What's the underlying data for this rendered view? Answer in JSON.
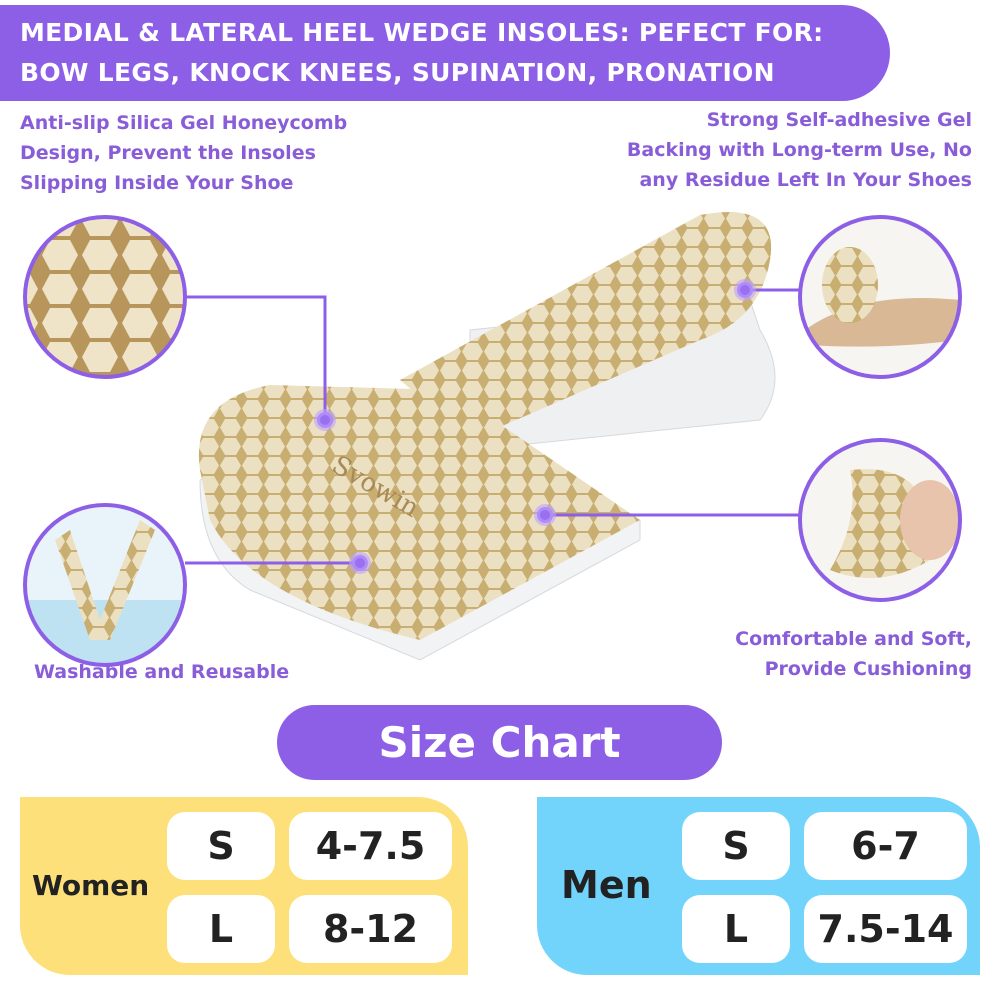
{
  "banner": {
    "line1": "MEDIAL & LATERAL HEEL WEDGE INSOLES: PEFECT FOR:",
    "line2": "BOW LEGS, KNOCK KNEES, SUPINATION, PRONATION"
  },
  "features": {
    "top_left": [
      "Anti-slip Silica Gel Honeycomb",
      "Design, Prevent the Insoles",
      "Slipping Inside Your Shoe"
    ],
    "top_right": [
      "Strong Self-adhesive Gel",
      "Backing with Long-term Use, No",
      "any Residue Left In Your Shoes"
    ],
    "bottom_left": [
      "Washable and Reusable"
    ],
    "bottom_right": [
      "Comfortable and Soft,",
      "Provide Cushioning"
    ]
  },
  "product": {
    "brand": "Svowin"
  },
  "size_chart": {
    "title": "Size Chart",
    "women": {
      "label": "Women",
      "rows": [
        {
          "size": "S",
          "range": "4-7.5"
        },
        {
          "size": "L",
          "range": "8-12"
        }
      ]
    },
    "men": {
      "label": "Men",
      "rows": [
        {
          "size": "S",
          "range": "6-7"
        },
        {
          "size": "L",
          "range": "7.5-14"
        }
      ]
    }
  },
  "colors": {
    "accent": "#8d5fe6",
    "women": "#fde07a",
    "men": "#72d4fb",
    "insole": "#e6d5ad"
  }
}
